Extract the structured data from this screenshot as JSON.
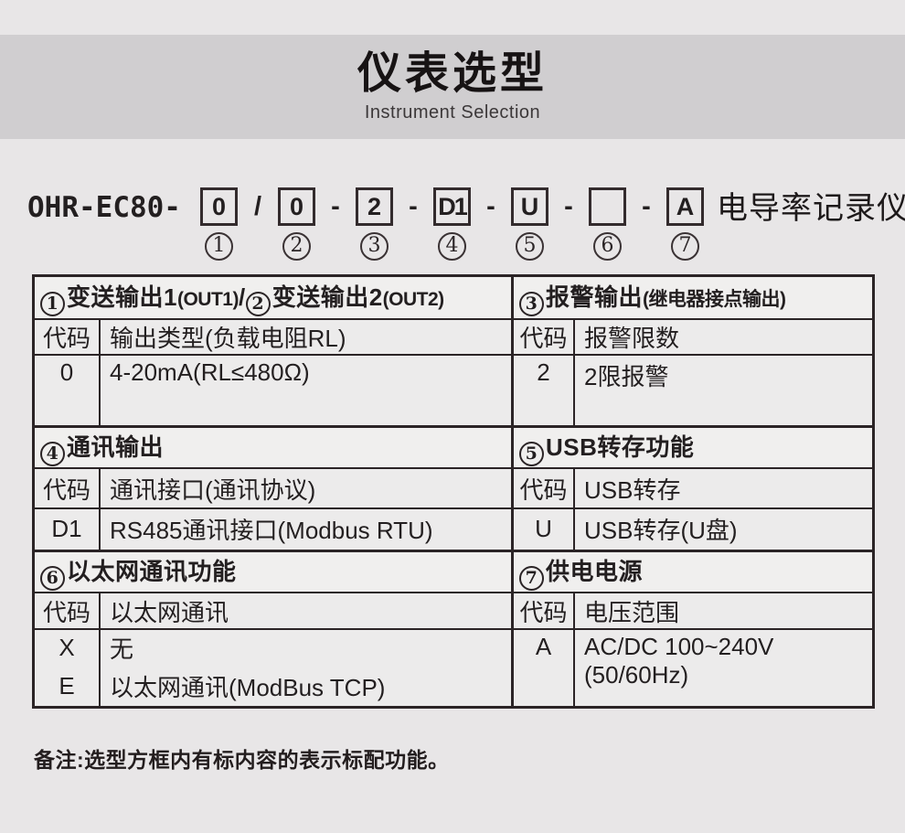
{
  "colors": {
    "page_bg": "#e8e6e7",
    "title_band_bg": "#d0ced0",
    "table_cell_bg": "#ecebeb",
    "border": "#2b2426",
    "text": "#231f20"
  },
  "header": {
    "title": "仪表选型",
    "subtitle": "Instrument Selection"
  },
  "model": {
    "prefix": "OHR-EC80-",
    "suffix": "电导率记录仪",
    "sep_slash": "/",
    "sep_dash": "-",
    "segments": [
      {
        "code": "0",
        "num": "1"
      },
      {
        "code": "0",
        "num": "2"
      },
      {
        "code": "2",
        "num": "3"
      },
      {
        "code": "D1",
        "num": "4"
      },
      {
        "code": "U",
        "num": "5"
      },
      {
        "code": "",
        "num": "6"
      },
      {
        "code": "A",
        "num": "7"
      }
    ]
  },
  "table": {
    "left_sections": [
      {
        "header_parts": [
          {
            "num": "1",
            "text": "变送输出1",
            "paren": "(OUT1)",
            "sep": "/"
          },
          {
            "num": "2",
            "text": "变送输出2",
            "paren": "(OUT2)"
          }
        ],
        "col1": "代码",
        "col2": "输出类型(负载电阻RL)",
        "rows": [
          {
            "code": "0",
            "desc": "4-20mA(RL≤480Ω)"
          }
        ]
      },
      {
        "header_parts": [
          {
            "num": "4",
            "text": "通讯输出"
          }
        ],
        "col1": "代码",
        "col2": "通讯接口(通讯协议)",
        "rows": [
          {
            "code": "D1",
            "desc": "RS485通讯接口(Modbus RTU)"
          }
        ]
      },
      {
        "header_parts": [
          {
            "num": "6",
            "text": "以太网通讯功能"
          }
        ],
        "col1": "代码",
        "col2": "以太网通讯",
        "rows": [
          {
            "code": "X",
            "desc": "无"
          },
          {
            "code": "E",
            "desc": "以太网通讯(ModBus TCP)"
          }
        ]
      }
    ],
    "right_sections": [
      {
        "header_parts": [
          {
            "num": "3",
            "text": "报警输出",
            "paren": "(继电器接点输出)"
          }
        ],
        "col1": "代码",
        "col2": "报警限数",
        "rows": [
          {
            "code": "2",
            "desc": "2限报警"
          }
        ]
      },
      {
        "header_parts": [
          {
            "num": "5",
            "text": "USB转存功能"
          }
        ],
        "col1": "代码",
        "col2": "USB转存",
        "rows": [
          {
            "code": "U",
            "desc": "USB转存(U盘)"
          }
        ]
      },
      {
        "header_parts": [
          {
            "num": "7",
            "text": "供电电源"
          }
        ],
        "col1": "代码",
        "col2": "电压范围",
        "rows": [
          {
            "code": "A",
            "desc": "AC/DC 100~240V",
            "desc2": "(50/60Hz)"
          }
        ]
      }
    ]
  },
  "note": "备注:选型方框内有标内容的表示标配功能。"
}
